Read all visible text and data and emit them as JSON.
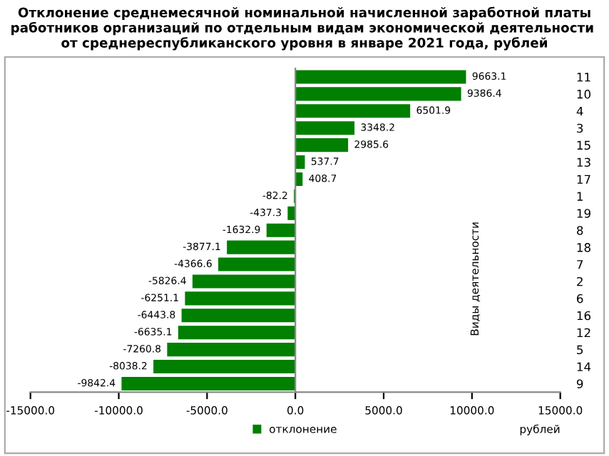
{
  "chart_data": {
    "type": "bar",
    "orientation": "horizontal",
    "title": "Отклонение среднемесячной номинальной начисленной заработной платы работников организаций по отдельным видам экономической деятельности  от среднереспубликанского уровня в январе 2021 года, рублей",
    "xlabel": "рублей",
    "ylabel": "Виды деятельности",
    "categories": [
      "11",
      "10",
      "4",
      "3",
      "15",
      "13",
      "17",
      "1",
      "19",
      "8",
      "18",
      "7",
      "2",
      "6",
      "16",
      "12",
      "5",
      "14",
      "9"
    ],
    "series": [
      {
        "name": "отклонение",
        "color": "#007f00",
        "values": [
          9663.1,
          9386.4,
          6501.9,
          3348.2,
          2985.6,
          537.7,
          408.7,
          -82.2,
          -437.3,
          -1632.9,
          -3877.1,
          -4366.6,
          -5826.4,
          -6251.1,
          -6443.8,
          -6635.1,
          -7260.8,
          -8038.2,
          -9842.4
        ]
      }
    ],
    "xlim": [
      -15000,
      15000
    ],
    "xticks": [
      {
        "value": -15000,
        "label": "-15000.0"
      },
      {
        "value": -10000,
        "label": "-10000.0"
      },
      {
        "value": -5000,
        "label": "-5000.0"
      },
      {
        "value": 0,
        "label": "0.0"
      },
      {
        "value": 5000,
        "label": "5000.0"
      },
      {
        "value": 10000,
        "label": "10000.0"
      },
      {
        "value": 15000,
        "label": "15000.0"
      }
    ],
    "data_labels": true,
    "legend": "bottom"
  }
}
